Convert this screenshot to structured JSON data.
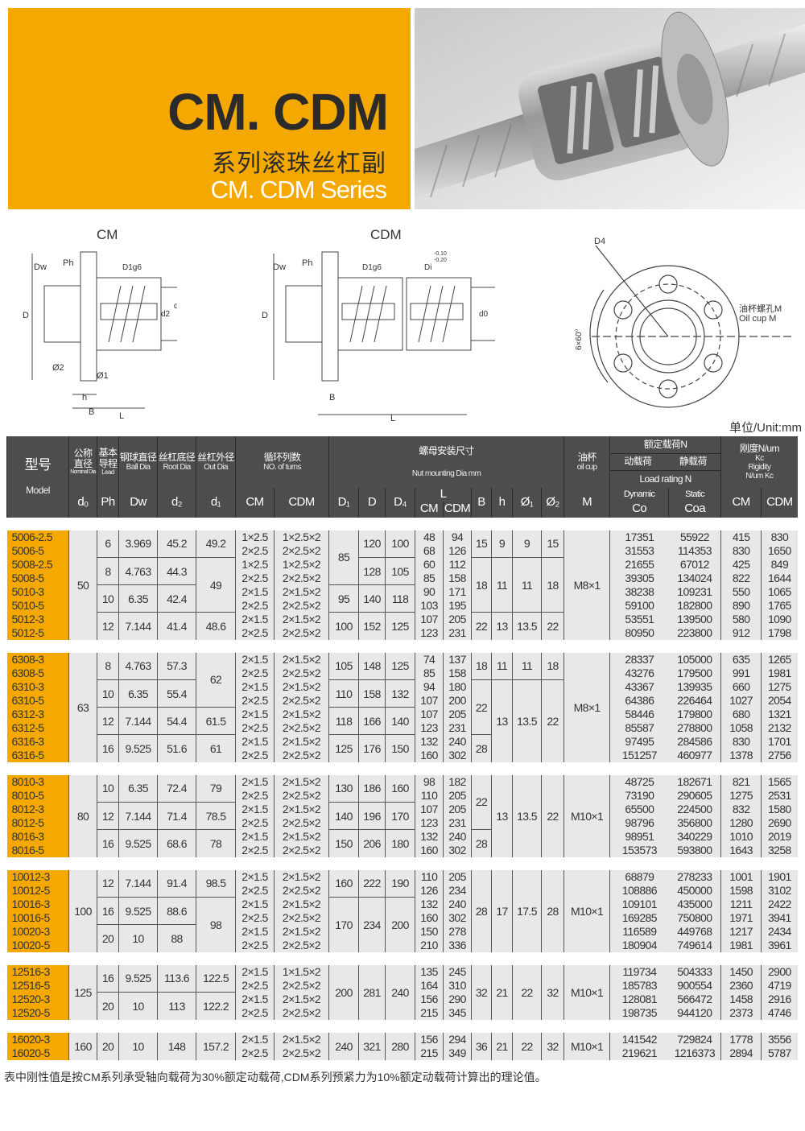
{
  "banner": {
    "title": "CM. CDM",
    "subtitle_cn": "系列滚珠丝杠副",
    "subtitle_en": "CM. CDM Series",
    "accent": "#f5a800"
  },
  "diagrams": {
    "cm_title": "CM",
    "cdm_title": "CDM",
    "labels": {
      "dw": "Dw",
      "ph": "Ph",
      "d1g6": "D1g6",
      "D": "D",
      "d2": "d2",
      "d1": "d1",
      "d0": "d0",
      "o2": "Ø2",
      "o1": "Ø1",
      "h": "h",
      "B": "B",
      "L": "L",
      "di": "Di",
      "di_tol_upper": "-0.10",
      "di_tol_lower": "-0.20",
      "d4": "D4",
      "angle": "6×60°",
      "oil_cn": "油杯螺孔M",
      "oil_en": "Oil cup M"
    }
  },
  "unit": "单位/Unit:mm",
  "table": {
    "header": {
      "model_cn": "型号",
      "model_en": "Model",
      "nominal_cn": "公称直径",
      "nominal_en": "Nominal Dia",
      "lead_cn": "基本导程",
      "lead_en": "Lead",
      "ball_cn": "钢球直径",
      "ball_en": "Ball Dia",
      "root_cn": "丝杠底径",
      "root_en": "Root Dia",
      "out_cn": "丝杠外径",
      "out_en": "Out Dia",
      "turns_cn": "循环列数",
      "turns_en": "NO. of turns",
      "nut_cn": "螺母安装尺寸",
      "nut_en": "Nut mounting Dia mm",
      "oil_cn": "油杯",
      "oil_en": "oil cup",
      "load_cn": "额定载荷N",
      "dyn_cn": "动载荷",
      "stat_cn": "静载荷",
      "load_en": "Load rating  N",
      "rig_cn": "刚度N/um",
      "rig_kc": "Kc",
      "rig_en": "Rigidity",
      "rig_unit": "N/um  Kc",
      "sym": {
        "d0": "d₀",
        "ph": "Ph",
        "dw": "Dw",
        "d2": "d₂",
        "d1": "d₁",
        "cm": "CM",
        "cdm": "CDM",
        "D1": "D₁",
        "D": "D",
        "D4": "D₄",
        "L": "L",
        "L_cm": "CM",
        "L_cdm": "CDM",
        "B": "B",
        "h": "h",
        "o1": "Ø₁",
        "o2": "Ø₂",
        "M": "M",
        "dynamic": "Dynamic",
        "co": "Co",
        "static": "Static",
        "coa": "Coa",
        "k_cm": "CM",
        "k_cdm": "CDM"
      }
    },
    "groups": [
      {
        "d0": "50",
        "M": "M8×1",
        "pairs": [
          {
            "ph": "6",
            "dw": "3.969",
            "d2": "45.2",
            "d1": "49.2",
            "D1": "85",
            "D": "120",
            "D4": "100",
            "B": "15",
            "h": "9",
            "o1": "9",
            "o2": "15",
            "rows": [
              [
                "5006-2.5",
                "1×2.5",
                "1×2.5×2",
                "48",
                "94",
                "17351",
                "55922",
                "415",
                "830"
              ],
              [
                "5006-5",
                "2×2.5",
                "2×2.5×2",
                "68",
                "126",
                "31553",
                "114353",
                "830",
                "1650"
              ]
            ]
          },
          {
            "ph": "8",
            "dw": "4.763",
            "d2": "44.3",
            "d1": "49",
            "D1": "85",
            "D": "128",
            "D4": "105",
            "B": "18",
            "h": "11",
            "o1": "11",
            "o2": "18",
            "rows": [
              [
                "5008-2.5",
                "1×2.5",
                "1×2.5×2",
                "60",
                "112",
                "21655",
                "67012",
                "425",
                "849"
              ],
              [
                "5008-5",
                "2×2.5",
                "2×2.5×2",
                "85",
                "158",
                "39305",
                "134024",
                "822",
                "1644"
              ]
            ]
          },
          {
            "ph": "10",
            "dw": "6.35",
            "d2": "42.4",
            "d1": "49",
            "D1": "95",
            "D": "140",
            "D4": "118",
            "B": "18",
            "h": "11",
            "o1": "11",
            "o2": "18",
            "rows": [
              [
                "5010-3",
                "2×1.5",
                "2×1.5×2",
                "90",
                "171",
                "38238",
                "109231",
                "550",
                "1065"
              ],
              [
                "5010-5",
                "2×2.5",
                "2×2.5×2",
                "103",
                "195",
                "59100",
                "182800",
                "890",
                "1765"
              ]
            ]
          },
          {
            "ph": "12",
            "dw": "7.144",
            "d2": "41.4",
            "d1": "48.6",
            "D1": "100",
            "D": "152",
            "D4": "125",
            "B": "22",
            "h": "13",
            "o1": "13.5",
            "o2": "22",
            "rows": [
              [
                "5012-3",
                "2×1.5",
                "2×1.5×2",
                "107",
                "205",
                "53551",
                "139500",
                "580",
                "1090"
              ],
              [
                "5012-5",
                "2×2.5",
                "2×2.5×2",
                "123",
                "231",
                "80950",
                "223800",
                "912",
                "1798"
              ]
            ]
          }
        ]
      },
      {
        "d0": "63",
        "M": "M8×1",
        "pairs": [
          {
            "ph": "8",
            "dw": "4.763",
            "d2": "57.3",
            "d1": "62",
            "D1": "105",
            "D": "148",
            "D4": "125",
            "B": "18",
            "h": "11",
            "o1": "11",
            "o2": "18",
            "rows": [
              [
                "6308-3",
                "2×1.5",
                "2×1.5×2",
                "74",
                "137",
                "28337",
                "105000",
                "635",
                "1265"
              ],
              [
                "6308-5",
                "2×2.5",
                "2×2.5×2",
                "85",
                "158",
                "43276",
                "179500",
                "991",
                "1981"
              ]
            ]
          },
          {
            "ph": "10",
            "dw": "6.35",
            "d2": "55.4",
            "d1": "62",
            "D1": "110",
            "D": "158",
            "D4": "132",
            "B": "22",
            "h": "13",
            "o1": "13.5",
            "o2": "22",
            "rows": [
              [
                "6310-3",
                "2×1.5",
                "2×1.5×2",
                "94",
                "180",
                "43367",
                "139935",
                "660",
                "1275"
              ],
              [
                "6310-5",
                "2×2.5",
                "2×2.5×2",
                "107",
                "200",
                "64386",
                "226464",
                "1027",
                "2054"
              ]
            ]
          },
          {
            "ph": "12",
            "dw": "7.144",
            "d2": "54.4",
            "d1": "61.5",
            "D1": "118",
            "D": "166",
            "D4": "140",
            "B": "22",
            "h": "13",
            "o1": "13.5",
            "o2": "22",
            "rows": [
              [
                "6312-3",
                "2×1.5",
                "2×1.5×2",
                "107",
                "205",
                "58446",
                "179800",
                "680",
                "1321"
              ],
              [
                "6312-5",
                "2×2.5",
                "2×2.5×2",
                "123",
                "231",
                "85587",
                "278800",
                "1058",
                "2132"
              ]
            ]
          },
          {
            "ph": "16",
            "dw": "9.525",
            "d2": "51.6",
            "d1": "61",
            "D1": "125",
            "D": "176",
            "D4": "150",
            "B": "28",
            "h": "13",
            "o1": "13.5",
            "o2": "22",
            "rows": [
              [
                "6316-3",
                "2×1.5",
                "2×1.5×2",
                "132",
                "240",
                "97495",
                "284586",
                "830",
                "1701"
              ],
              [
                "6316-5",
                "2×2.5",
                "2×2.5×2",
                "160",
                "302",
                "151257",
                "460977",
                "1378",
                "2756"
              ]
            ]
          }
        ]
      },
      {
        "d0": "80",
        "M": "M10×1",
        "pairs": [
          {
            "ph": "10",
            "dw": "6.35",
            "d2": "72.4",
            "d1": "79",
            "D1": "130",
            "D": "186",
            "D4": "160",
            "B": "22",
            "h": "13",
            "o1": "13.5",
            "o2": "22",
            "rows": [
              [
                "8010-3",
                "2×1.5",
                "2×1.5×2",
                "98",
                "182",
                "48725",
                "182671",
                "821",
                "1565"
              ],
              [
                "8010-5",
                "2×2.5",
                "2×2.5×2",
                "110",
                "205",
                "73190",
                "290605",
                "1275",
                "2531"
              ]
            ]
          },
          {
            "ph": "12",
            "dw": "7.144",
            "d2": "71.4",
            "d1": "78.5",
            "D1": "140",
            "D": "196",
            "D4": "170",
            "B": "22",
            "h": "13",
            "o1": "13.5",
            "o2": "22",
            "rows": [
              [
                "8012-3",
                "2×1.5",
                "2×1.5×2",
                "107",
                "205",
                "65500",
                "224500",
                "832",
                "1580"
              ],
              [
                "8012-5",
                "2×2.5",
                "2×2.5×2",
                "123",
                "231",
                "98796",
                "356800",
                "1280",
                "2690"
              ]
            ]
          },
          {
            "ph": "16",
            "dw": "9.525",
            "d2": "68.6",
            "d1": "78",
            "D1": "150",
            "D": "206",
            "D4": "180",
            "B": "28",
            "h": "13",
            "o1": "13.5",
            "o2": "22",
            "rows": [
              [
                "8016-3",
                "2×1.5",
                "2×1.5×2",
                "132",
                "240",
                "98951",
                "340229",
                "1010",
                "2019"
              ],
              [
                "8016-5",
                "2×2.5",
                "2×2.5×2",
                "160",
                "302",
                "153573",
                "593800",
                "1643",
                "3258"
              ]
            ]
          }
        ]
      },
      {
        "d0": "100",
        "M": "M10×1",
        "pairs": [
          {
            "ph": "12",
            "dw": "7.144",
            "d2": "91.4",
            "d1": "98.5",
            "D1": "160",
            "D": "222",
            "D4": "190",
            "B": "28",
            "h": "17",
            "o1": "17.5",
            "o2": "28",
            "rows": [
              [
                "10012-3",
                "2×1.5",
                "2×1.5×2",
                "110",
                "205",
                "68879",
                "278233",
                "1001",
                "1901"
              ],
              [
                "10012-5",
                "2×2.5",
                "2×2.5×2",
                "126",
                "234",
                "108886",
                "450000",
                "1598",
                "3102"
              ]
            ]
          },
          {
            "ph": "16",
            "dw": "9.525",
            "d2": "88.6",
            "d1": "98",
            "D1": "170",
            "D": "234",
            "D4": "200",
            "B": "28",
            "h": "17",
            "o1": "17.5",
            "o2": "28",
            "rows": [
              [
                "10016-3",
                "2×1.5",
                "2×1.5×2",
                "132",
                "240",
                "109101",
                "435000",
                "1211",
                "2422"
              ],
              [
                "10016-5",
                "2×2.5",
                "2×2.5×2",
                "160",
                "302",
                "169285",
                "750800",
                "1971",
                "3941"
              ]
            ]
          },
          {
            "ph": "20",
            "dw": "10",
            "d2": "88",
            "d1": "98",
            "D1": "170",
            "D": "234",
            "D4": "200",
            "B": "28",
            "h": "17",
            "o1": "17.5",
            "o2": "28",
            "rows": [
              [
                "10020-3",
                "2×1.5",
                "2×1.5×2",
                "150",
                "278",
                "116589",
                "449768",
                "1217",
                "2434"
              ],
              [
                "10020-5",
                "2×2.5",
                "2×2.5×2",
                "210",
                "336",
                "180904",
                "749614",
                "1981",
                "3961"
              ]
            ]
          }
        ]
      },
      {
        "d0": "125",
        "M": "M10×1",
        "pairs": [
          {
            "ph": "16",
            "dw": "9.525",
            "d2": "113.6",
            "d1": "122.5",
            "D1": "200",
            "D": "281",
            "D4": "240",
            "B": "32",
            "h": "21",
            "o1": "22",
            "o2": "32",
            "rows": [
              [
                "12516-3",
                "2×1.5",
                "1×1.5×2",
                "135",
                "245",
                "119734",
                "504333",
                "1450",
                "2900"
              ],
              [
                "12516-5",
                "2×2.5",
                "2×2.5×2",
                "164",
                "310",
                "185783",
                "900554",
                "2360",
                "4719"
              ]
            ]
          },
          {
            "ph": "20",
            "dw": "10",
            "d2": "113",
            "d1": "122.2",
            "D1": "200",
            "D": "281",
            "D4": "240",
            "B": "32",
            "h": "21",
            "o1": "22",
            "o2": "32",
            "rows": [
              [
                "12520-3",
                "2×1.5",
                "2×1.5×2",
                "156",
                "290",
                "128081",
                "566472",
                "1458",
                "2916"
              ],
              [
                "12520-5",
                "2×2.5",
                "2×2.5×2",
                "215",
                "345",
                "198735",
                "944120",
                "2373",
                "4746"
              ]
            ]
          }
        ]
      },
      {
        "d0": "160",
        "M": "M10×1",
        "pairs": [
          {
            "ph": "20",
            "dw": "10",
            "d2": "148",
            "d1": "157.2",
            "D1": "240",
            "D": "321",
            "D4": "280",
            "B": "36",
            "h": "21",
            "o1": "22",
            "o2": "32",
            "rows": [
              [
                "16020-3",
                "2×1.5",
                "2×1.5×2",
                "156",
                "294",
                "141542",
                "729824",
                "1778",
                "3556"
              ],
              [
                "16020-5",
                "2×2.5",
                "2×2.5×2",
                "215",
                "349",
                "219621",
                "1216373",
                "2894",
                "5787"
              ]
            ]
          }
        ]
      }
    ]
  },
  "footnote": "表中刚性值是按CM系列承受轴向载荷为30%额定动载荷,CDM系列预紧力为10%额定动载荷计算出的理论值。"
}
